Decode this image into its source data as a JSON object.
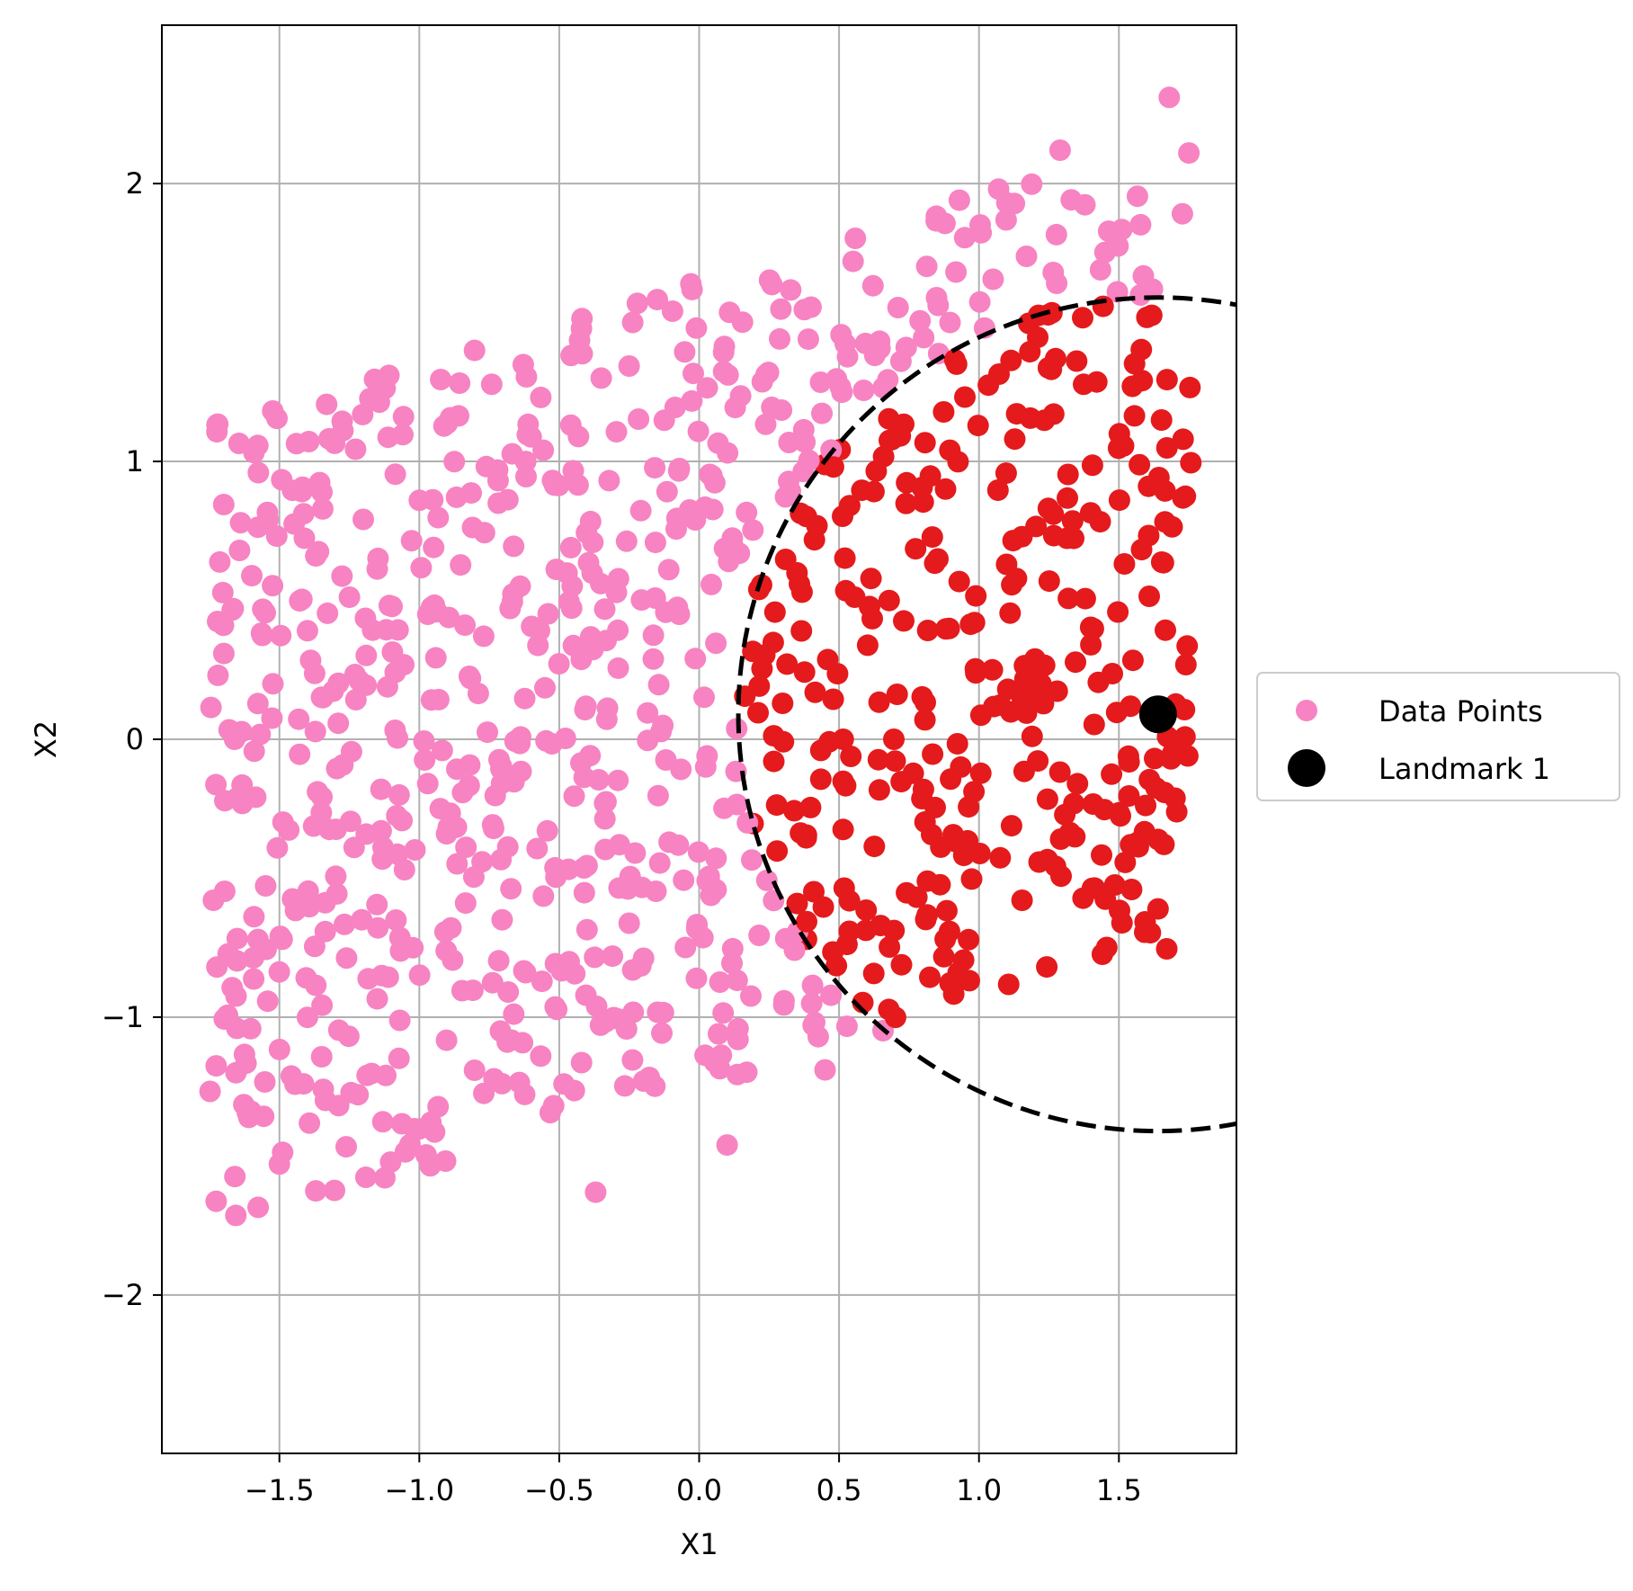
{
  "chart_data": {
    "type": "scatter",
    "title": "",
    "xlabel": "X1",
    "ylabel": "X2",
    "xlim": [
      -1.92,
      1.92
    ],
    "ylim": [
      -2.57,
      2.57
    ],
    "x_ticks": [
      -1.5,
      -1.0,
      -0.5,
      0.0,
      0.5,
      1.0,
      1.5
    ],
    "x_tick_labels": [
      "−1.5",
      "−1.0",
      "−0.5",
      "0.0",
      "0.5",
      "1.0",
      "1.5"
    ],
    "y_ticks": [
      -2,
      -1,
      0,
      1,
      2
    ],
    "y_tick_labels": [
      "−2",
      "−1",
      "0",
      "1",
      "2"
    ],
    "grid": true,
    "legend_position": "outside-right",
    "legend": [
      {
        "label": "Data Points",
        "color": "#f783c2",
        "marker": "circle"
      },
      {
        "label": "Landmark 1",
        "color": "#000000",
        "marker": "circle-large"
      }
    ],
    "colors": {
      "outside_points": "#f783c2",
      "inside_points": "#e41a1c",
      "landmark": "#000000",
      "circle": "#000000"
    },
    "landmark": {
      "name": "Landmark 1",
      "x": 1.64,
      "y": 0.09
    },
    "radius_circle": {
      "center": [
        1.64,
        0.09
      ],
      "radius": 1.5,
      "style": "dashed"
    },
    "series": [
      {
        "name": "Data Points",
        "generator": {
          "count": 1000,
          "seed": 7,
          "x_range": [
            -1.75,
            1.76
          ],
          "y_center_at": [
            [
              -1.75,
              -0.32
            ],
            [
              1.76,
              0.72
            ]
          ],
          "y_half_width": 1.45
        },
        "x": [
          1.68,
          1.75,
          1.62,
          1.29,
          1.07,
          0.93,
          0.55,
          0.39,
          -0.01,
          -0.35,
          -0.62,
          -1.0,
          -1.37,
          -1.7,
          -1.66,
          -1.49,
          -1.12,
          -0.71,
          -0.37,
          0.1,
          0.45,
          0.48,
          0.74,
          0.92
        ],
        "y": [
          2.31,
          2.11,
          1.62,
          2.12,
          1.98,
          1.94,
          1.72,
          1.44,
          1.48,
          1.3,
          1.0,
          0.86,
          0.66,
          0.41,
          0.0,
          -0.72,
          -1.21,
          -1.05,
          -1.63,
          -1.46,
          -1.19,
          0.98,
          1.41,
          1.35
        ]
      }
    ]
  }
}
